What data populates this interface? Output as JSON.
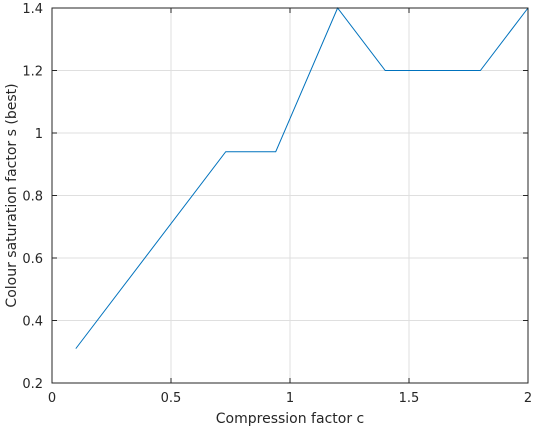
{
  "chart_data": {
    "type": "line",
    "xlabel": "Compression factor c",
    "ylabel": "Colour saturation factor s (best)",
    "xlim": [
      0,
      2
    ],
    "ylim": [
      0.2,
      1.4
    ],
    "xticks": [
      0,
      0.5,
      1,
      1.5,
      2
    ],
    "xtick_labels": [
      "0",
      "0.5",
      "1",
      "1.5",
      "2"
    ],
    "yticks": [
      0.2,
      0.4,
      0.6,
      0.8,
      1,
      1.2,
      1.4
    ],
    "ytick_labels": [
      "0.2",
      "0.4",
      "0.6",
      "0.8",
      "1",
      "1.2",
      "1.4"
    ],
    "grid": true,
    "series": [
      {
        "color": "#0072bd",
        "x": [
          0.1,
          0.73,
          0.94,
          1.2,
          1.4,
          1.8,
          2.0
        ],
        "y": [
          0.31,
          0.94,
          0.94,
          1.4,
          1.2,
          1.2,
          1.4
        ]
      }
    ]
  }
}
